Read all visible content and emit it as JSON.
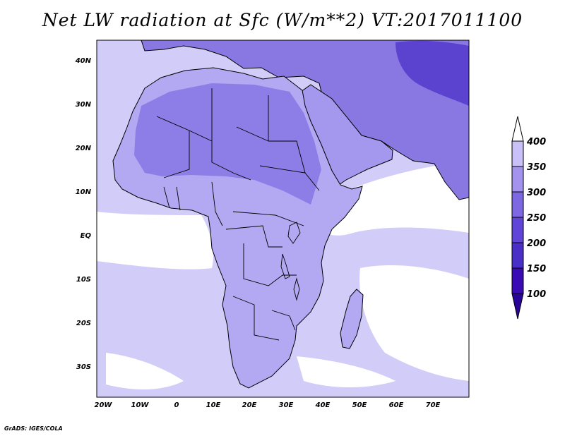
{
  "title": "Net LW radiation at Sfc (W/m**2) VT:2017011100",
  "credit": "GrADS: IGES/COLA",
  "axes": {
    "lat_labels": [
      "40N",
      "30N",
      "20N",
      "10N",
      "EQ",
      "10S",
      "20S",
      "30S"
    ],
    "lon_labels": [
      "20W",
      "10W",
      "0",
      "10E",
      "20E",
      "30E",
      "40E",
      "50E",
      "60E",
      "70E"
    ],
    "lon_range": [
      -22,
      80
    ],
    "lat_range": [
      -37,
      45
    ]
  },
  "colorbar": {
    "levels": [
      "100",
      "150",
      "200",
      "250",
      "300",
      "350",
      "400"
    ],
    "colors": [
      "#3a0ab4",
      "#4a2ec8",
      "#6046d8",
      "#7d68e2",
      "#a393ee",
      "#c9c0f7",
      "#e9e6fd"
    ],
    "below_color": "#2a0398",
    "above_color": "#ffffff"
  },
  "map": {
    "ocean_color": "#d2cdf8",
    "high_value_color": "#ffffff",
    "africa_fill": "#b3a8f2",
    "sahara_fill": "#8d7de6",
    "middle_east_fill": "#a497ee",
    "asia_fill": "#8a78e2",
    "tibet_fill": "#5b42cf",
    "outline_color": "#000000"
  }
}
